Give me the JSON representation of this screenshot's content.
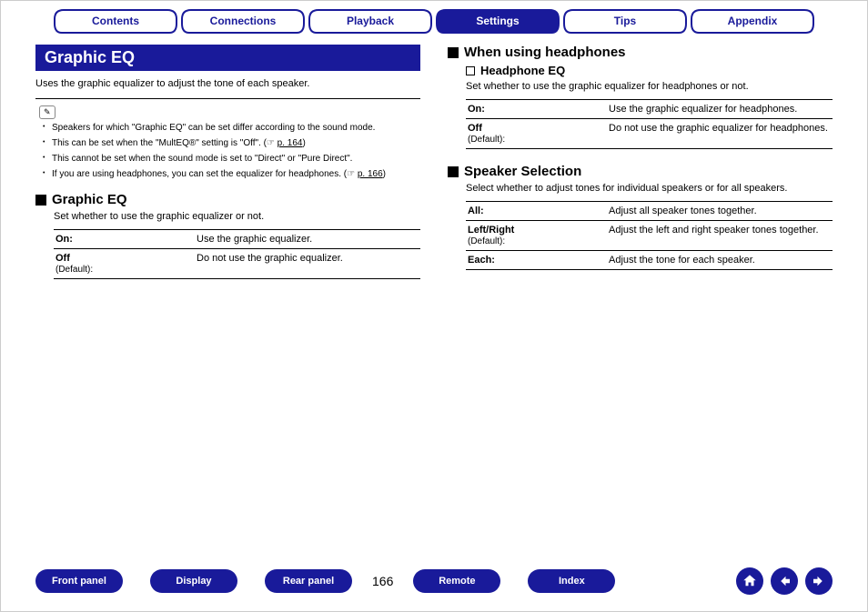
{
  "colors": {
    "brand": "#191a9a",
    "text": "#000000",
    "bg": "#ffffff"
  },
  "topTabs": [
    {
      "label": "Contents",
      "active": false
    },
    {
      "label": "Connections",
      "active": false
    },
    {
      "label": "Playback",
      "active": false
    },
    {
      "label": "Settings",
      "active": true
    },
    {
      "label": "Tips",
      "active": false
    },
    {
      "label": "Appendix",
      "active": false
    }
  ],
  "left": {
    "title": "Graphic EQ",
    "intro": "Uses the graphic equalizer to adjust the tone of each speaker.",
    "notes": [
      "Speakers for which \"Graphic EQ\" can be set differ according to the sound mode.",
      "This can be set when the \"MultEQ®\" setting is \"Off\".  (☞ p. 164)",
      "This cannot be set when the sound mode is set to \"Direct\" or \"Pure Direct\".",
      "If you are using headphones, you can set the equalizer for headphones. (☞ p. 166)"
    ],
    "section1": {
      "heading": "Graphic EQ",
      "desc": "Set whether to use the graphic equalizer or not.",
      "rows": [
        {
          "label": "On:",
          "default": "",
          "desc": "Use the graphic equalizer."
        },
        {
          "label": "Off",
          "default": "(Default):",
          "desc": "Do not use the graphic equalizer."
        }
      ]
    }
  },
  "right": {
    "section1": {
      "heading": "When using headphones",
      "sub": "Headphone EQ",
      "desc": "Set whether to use the graphic equalizer for headphones or not.",
      "rows": [
        {
          "label": "On:",
          "default": "",
          "desc": "Use the graphic equalizer for headphones."
        },
        {
          "label": "Off",
          "default": "(Default):",
          "desc": "Do not use the graphic equalizer for headphones."
        }
      ]
    },
    "section2": {
      "heading": "Speaker Selection",
      "desc": "Select whether to adjust tones for individual speakers or for all speakers.",
      "rows": [
        {
          "label": "All:",
          "default": "",
          "desc": "Adjust all speaker tones together."
        },
        {
          "label": "Left/Right",
          "default": "(Default):",
          "desc": "Adjust the left and right speaker tones together."
        },
        {
          "label": "Each:",
          "default": "",
          "desc": "Adjust the tone for each speaker."
        }
      ]
    }
  },
  "bottom": {
    "pillsLeft": [
      "Front panel",
      "Display",
      "Rear panel"
    ],
    "pageNum": "166",
    "pillsRight": [
      "Remote",
      "Index"
    ]
  }
}
